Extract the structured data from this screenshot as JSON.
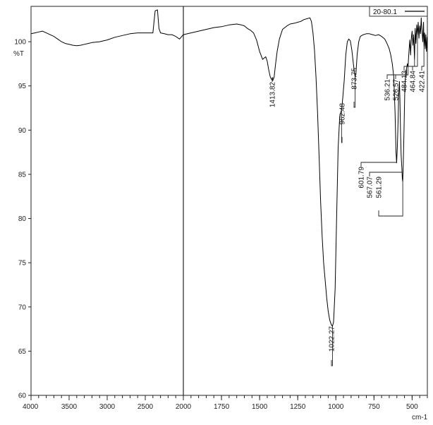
{
  "chart_data": {
    "type": "line",
    "ylabel": "%T",
    "xlabel": "cm-1",
    "xlim": [
      4000,
      400
    ],
    "ylim": [
      60,
      104
    ],
    "x_ticks": [
      4000,
      3500,
      3000,
      2500,
      2000,
      1750,
      1500,
      1250,
      1000,
      750,
      500
    ],
    "y_ticks": [
      60,
      65,
      70,
      75,
      80,
      85,
      90,
      95,
      100
    ],
    "x_axis_direction": "decreasing",
    "x_scale": "two-segment (4000-2000 compressed, 2000-400 expanded)",
    "grid": false,
    "legend_position": "top-right",
    "divider_x": 2000,
    "series": [
      {
        "name": "20-80.1",
        "color": "#000000",
        "points": [
          [
            4000,
            100.9
          ],
          [
            3950,
            101.0
          ],
          [
            3900,
            101.1
          ],
          [
            3850,
            101.2
          ],
          [
            3800,
            101.0
          ],
          [
            3750,
            100.8
          ],
          [
            3700,
            100.6
          ],
          [
            3650,
            100.3
          ],
          [
            3600,
            100.0
          ],
          [
            3550,
            99.8
          ],
          [
            3500,
            99.7
          ],
          [
            3450,
            99.6
          ],
          [
            3400,
            99.55
          ],
          [
            3350,
            99.6
          ],
          [
            3300,
            99.7
          ],
          [
            3250,
            99.8
          ],
          [
            3200,
            99.9
          ],
          [
            3100,
            100.0
          ],
          [
            3000,
            100.2
          ],
          [
            2900,
            100.5
          ],
          [
            2800,
            100.7
          ],
          [
            2700,
            100.9
          ],
          [
            2600,
            101.0
          ],
          [
            2500,
            101.0
          ],
          [
            2450,
            101.0
          ],
          [
            2400,
            101.0
          ],
          [
            2370,
            103.5
          ],
          [
            2340,
            103.6
          ],
          [
            2320,
            101.5
          ],
          [
            2300,
            101.0
          ],
          [
            2250,
            100.9
          ],
          [
            2200,
            100.8
          ],
          [
            2150,
            100.8
          ],
          [
            2100,
            100.6
          ],
          [
            2050,
            100.3
          ],
          [
            2020,
            100.6
          ],
          [
            2000,
            100.8
          ],
          [
            1950,
            101.0
          ],
          [
            1900,
            101.2
          ],
          [
            1850,
            101.4
          ],
          [
            1800,
            101.6
          ],
          [
            1750,
            101.7
          ],
          [
            1700,
            101.9
          ],
          [
            1650,
            102.0
          ],
          [
            1620,
            101.9
          ],
          [
            1600,
            101.8
          ],
          [
            1580,
            101.5
          ],
          [
            1560,
            101.3
          ],
          [
            1540,
            101.0
          ],
          [
            1520,
            100.2
          ],
          [
            1500,
            98.9
          ],
          [
            1480,
            98.0
          ],
          [
            1460,
            98.3
          ],
          [
            1450,
            97.8
          ],
          [
            1440,
            96.8
          ],
          [
            1430,
            96.0
          ],
          [
            1420,
            95.7
          ],
          [
            1413.82,
            95.6
          ],
          [
            1405,
            96.0
          ],
          [
            1395,
            97.5
          ],
          [
            1385,
            98.9
          ],
          [
            1370,
            100.3
          ],
          [
            1350,
            101.4
          ],
          [
            1320,
            101.8
          ],
          [
            1300,
            102.0
          ],
          [
            1270,
            102.1
          ],
          [
            1250,
            102.2
          ],
          [
            1230,
            102.3
          ],
          [
            1210,
            102.5
          ],
          [
            1190,
            102.6
          ],
          [
            1170,
            102.7
          ],
          [
            1160,
            102.3
          ],
          [
            1150,
            101.0
          ],
          [
            1140,
            99.0
          ],
          [
            1130,
            96.0
          ],
          [
            1120,
            92.0
          ],
          [
            1110,
            87.0
          ],
          [
            1100,
            82.0
          ],
          [
            1090,
            78.0
          ],
          [
            1080,
            75.0
          ],
          [
            1070,
            73.0
          ],
          [
            1060,
            71.0
          ],
          [
            1050,
            69.5
          ],
          [
            1040,
            68.5
          ],
          [
            1030,
            68.0
          ],
          [
            1022.27,
            67.8
          ],
          [
            1015,
            68.3
          ],
          [
            1005,
            72.0
          ],
          [
            995,
            80.0
          ],
          [
            985,
            88.0
          ],
          [
            975,
            91.5
          ],
          [
            970,
            91.9
          ],
          [
            962.48,
            92.3
          ],
          [
            955,
            93.6
          ],
          [
            945,
            95.6
          ],
          [
            935,
            98.5
          ],
          [
            925,
            100.0
          ],
          [
            915,
            100.3
          ],
          [
            905,
            100.1
          ],
          [
            895,
            99.0
          ],
          [
            885,
            97.5
          ],
          [
            878,
            96.5
          ],
          [
            873.75,
            96.0
          ],
          [
            868,
            96.5
          ],
          [
            860,
            98.6
          ],
          [
            850,
            100.0
          ],
          [
            840,
            100.6
          ],
          [
            820,
            100.8
          ],
          [
            800,
            100.9
          ],
          [
            780,
            100.9
          ],
          [
            760,
            100.8
          ],
          [
            740,
            100.7
          ],
          [
            720,
            100.8
          ],
          [
            700,
            100.6
          ],
          [
            680,
            100.3
          ],
          [
            670,
            100.0
          ],
          [
            660,
            99.6
          ],
          [
            650,
            99.2
          ],
          [
            640,
            98.5
          ],
          [
            630,
            97.5
          ],
          [
            620,
            96.0
          ],
          [
            612,
            92.0
          ],
          [
            606,
            87.6
          ],
          [
            601.79,
            86.3
          ],
          [
            597,
            88.0
          ],
          [
            592,
            91.0
          ],
          [
            588,
            94.0
          ],
          [
            583,
            95.5
          ],
          [
            580,
            93.5
          ],
          [
            576,
            90.0
          ],
          [
            572,
            87.2
          ],
          [
            567.07,
            85.6
          ],
          [
            564,
            84.5
          ],
          [
            561.29,
            84.2
          ],
          [
            558,
            86.0
          ],
          [
            553,
            90.0
          ],
          [
            548,
            94.5
          ],
          [
            543,
            96.5
          ],
          [
            536.21,
            97.0
          ],
          [
            531,
            97.5
          ],
          [
            526.57,
            97.2
          ],
          [
            520,
            99.0
          ],
          [
            515,
            100.2
          ],
          [
            510,
            98.5
          ],
          [
            505,
            100.4
          ],
          [
            500,
            101.2
          ],
          [
            495,
            99.6
          ],
          [
            490,
            100.8
          ],
          [
            484.13,
            98.0
          ],
          [
            480,
            101.5
          ],
          [
            475,
            99.8
          ],
          [
            470,
            101.9
          ],
          [
            464.84,
            100.8
          ],
          [
            460,
            102.2
          ],
          [
            455,
            100.4
          ],
          [
            450,
            101.8
          ],
          [
            445,
            100.9
          ],
          [
            440,
            102.7
          ],
          [
            435,
            101.2
          ],
          [
            430,
            100.0
          ],
          [
            425,
            102.2
          ],
          [
            422.41,
            99.5
          ],
          [
            418,
            101.0
          ],
          [
            414,
            99.2
          ],
          [
            410,
            100.8
          ],
          [
            406,
            98.9
          ],
          [
            402,
            100.5
          ],
          [
            400,
            99.8
          ]
        ]
      }
    ],
    "peaks": [
      {
        "wavenumber": 1413.82,
        "label": "1413.82",
        "y": 95.6
      },
      {
        "wavenumber": 1022.27,
        "label": "1022.27",
        "y": 67.8
      },
      {
        "wavenumber": 962.48,
        "label": "962.48",
        "y": 92.3
      },
      {
        "wavenumber": 873.75,
        "label": "873.75",
        "y": 96.0
      },
      {
        "wavenumber": 601.79,
        "label": "601.79",
        "y": 86.3
      },
      {
        "wavenumber": 567.07,
        "label": "567.07",
        "y": 85.6
      },
      {
        "wavenumber": 561.29,
        "label": "561.29",
        "y": 84.2
      },
      {
        "wavenumber": 536.21,
        "label": "536.21",
        "y": 97.0
      },
      {
        "wavenumber": 526.57,
        "label": "526.57",
        "y": 97.2
      },
      {
        "wavenumber": 484.13,
        "label": "484.13",
        "y": 98.0
      },
      {
        "wavenumber": 464.84,
        "label": "464.84",
        "y": 100.8
      },
      {
        "wavenumber": 422.41,
        "label": "422.41",
        "y": 99.5
      }
    ]
  }
}
